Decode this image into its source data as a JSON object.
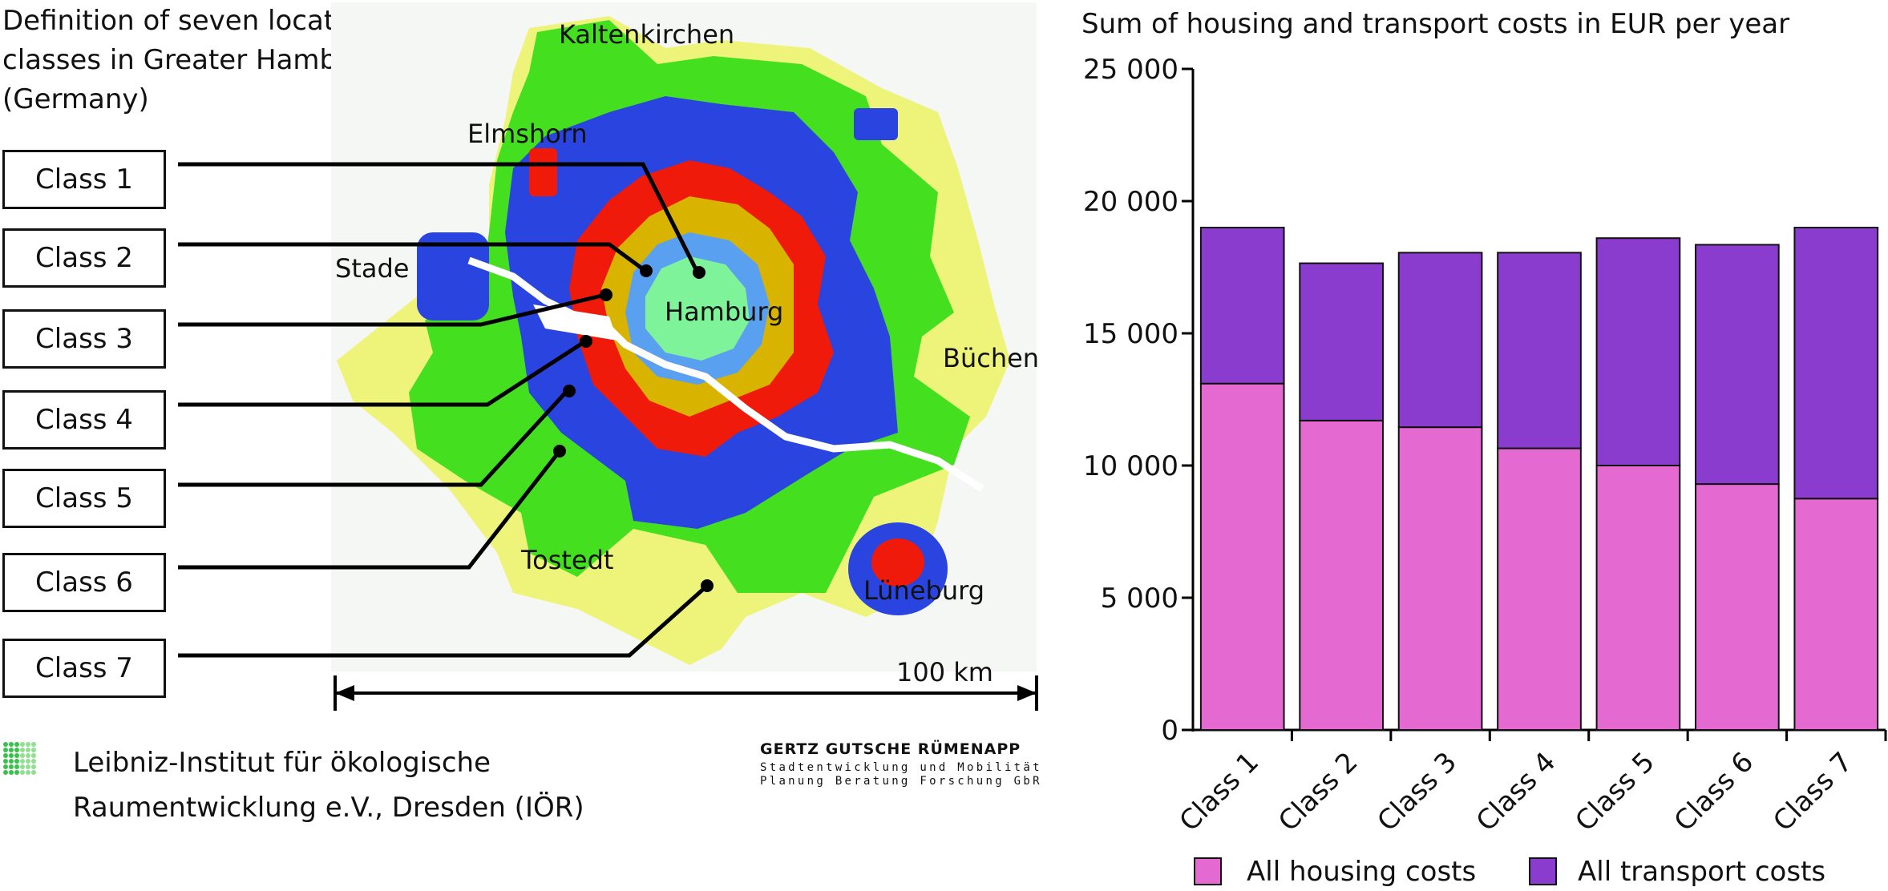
{
  "map_panel": {
    "title_lines": [
      "Definition of seven location",
      "classes in Greater Hamburg",
      "(Germany)"
    ],
    "classes": [
      "Class 1",
      "Class 2",
      "Class 3",
      "Class 4",
      "Class 5",
      "Class 6",
      "Class 7"
    ],
    "class_colors": [
      "#7ef39a",
      "#5aa0f0",
      "#d8b400",
      "#f01a0a",
      "#2a44e0",
      "#44e020",
      "#eef47a"
    ],
    "cities": {
      "kaltenkirchen": "Kaltenkirchen",
      "elmshorn": "Elmshorn",
      "stade": "Stade",
      "hamburg": "Hamburg",
      "buechen": "Büchen",
      "tostedt": "Tostedt",
      "lueneburg": "Lüneburg"
    },
    "scale": "100 km"
  },
  "credits": {
    "institute_line1": "Leibniz-Institut für ökologische",
    "institute_line2": "Raumentwicklung e.V., Dresden (IÖR)",
    "firm_name": "GERTZ GUTSCHE RÜMENAPP",
    "firm_line1": "Stadtentwicklung und Mobilität",
    "firm_line2": "Planung Beratung Forschung GbR"
  },
  "chart_data": {
    "type": "bar",
    "stacked": true,
    "title": "Sum of  housing and transport costs in EUR per year",
    "categories": [
      "Class 1",
      "Class 2",
      "Class 3",
      "Class 4",
      "Class 5",
      "Class 6",
      "Class 7"
    ],
    "series": [
      {
        "name": "All housing costs",
        "color": "#e46ad2",
        "values": [
          13100,
          11700,
          11450,
          10650,
          10000,
          9300,
          8750
        ]
      },
      {
        "name": "All transport costs",
        "color": "#8a3ccf",
        "values": [
          5900,
          5950,
          6600,
          7400,
          8600,
          9050,
          10250
        ]
      }
    ],
    "ylim": [
      0,
      25000
    ],
    "yticks": [
      0,
      5000,
      10000,
      15000,
      20000,
      25000
    ],
    "ytick_labels": [
      "0",
      "5 000",
      "10 000",
      "15 000",
      "20 000",
      "25 000"
    ],
    "legend": "bottom"
  }
}
